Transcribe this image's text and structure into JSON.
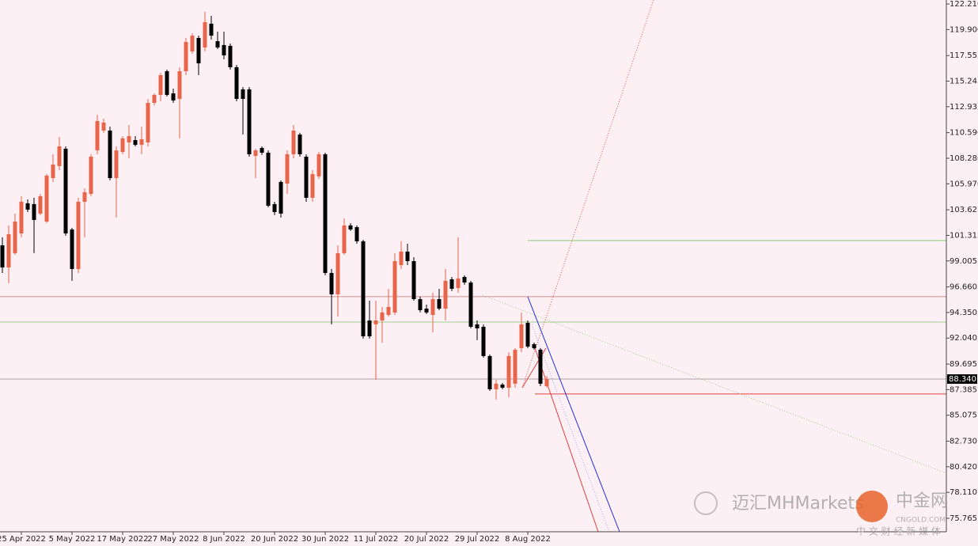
{
  "chart_data": {
    "type": "candlestick",
    "up_color": "#e8644a",
    "down_color": "#000000",
    "categories": [
      null,
      null,
      null,
      "25 Apr 2022",
      null,
      null,
      null,
      null,
      null,
      null,
      null,
      "5 May 2022",
      null,
      null,
      null,
      null,
      null,
      null,
      null,
      "17 May 2022",
      null,
      null,
      null,
      null,
      null,
      null,
      null,
      "27 May 2022",
      null,
      null,
      null,
      null,
      null,
      null,
      null,
      "8 Jun 2022",
      null,
      null,
      null,
      null,
      null,
      null,
      null,
      "20 Jun 2022",
      null,
      null,
      null,
      null,
      null,
      null,
      null,
      "30 Jun 2022",
      null,
      null,
      null,
      null,
      null,
      null,
      null,
      "11 Jul 2022",
      null,
      null,
      null,
      null,
      null,
      null,
      null,
      "20 Jul 2022",
      null,
      null,
      null,
      null,
      null,
      null,
      null,
      "29 Jul 2022",
      null,
      null,
      null,
      null,
      null,
      null,
      null,
      "8 Aug 2022",
      null,
      null,
      null
    ],
    "open": [
      100.42,
      98.42,
      99.71,
      101.49,
      104.21,
      104.14,
      103.28,
      102.56,
      106.49,
      107.57,
      109.14,
      101.85,
      98.28,
      104.35,
      105.06,
      108.99,
      110.78,
      110.78,
      106.49,
      108.85,
      109.71,
      109.92,
      109.49,
      109.71,
      113.28,
      114.0,
      116.14,
      114.14,
      113.64,
      116.14,
      117.93,
      119.14,
      118.28,
      120.43,
      118.85,
      118.5,
      118.43,
      116.5,
      114.5,
      114.5,
      108.49,
      109.21,
      108.78,
      104.14,
      106.14,
      105.99,
      108.64,
      110.42,
      108.42,
      104.71,
      106.64,
      108.64,
      97.92,
      95.99,
      99.71,
      102.21,
      102.06,
      100.78,
      93.63,
      93.28,
      93.63,
      94.13,
      94.35,
      98.63,
      99.85,
      98.99,
      95.56,
      94.7,
      94.13,
      95.56,
      94.7,
      97.35,
      96.56,
      97.56,
      97.06,
      93.28,
      93.06,
      90.42,
      87.42,
      87.84,
      87.56,
      87.92,
      91.13,
      93.42,
      91.49,
      90.99,
      87.7
    ],
    "high": [
      101.14,
      102.21,
      103.28,
      104.85,
      104.56,
      104.71,
      105.06,
      106.85,
      108.64,
      110.21,
      109.35,
      101.99,
      104.71,
      105.56,
      108.64,
      112.21,
      111.85,
      111.14,
      109.35,
      110.28,
      111.28,
      110.28,
      111.14,
      113.64,
      114.14,
      116.0,
      116.28,
      114.57,
      116.5,
      119.14,
      119.57,
      119.35,
      121.5,
      121.14,
      119.71,
      119.71,
      118.64,
      116.71,
      114.71,
      114.71,
      109.14,
      109.35,
      108.99,
      104.35,
      106.28,
      108.99,
      111.28,
      110.57,
      108.64,
      107.21,
      108.85,
      108.78,
      98.28,
      100.42,
      102.85,
      102.42,
      102.21,
      100.92,
      95.42,
      95.42,
      94.85,
      96.49,
      99.71,
      100.78,
      100.56,
      99.35,
      95.78,
      95.06,
      96.14,
      96.49,
      98.28,
      97.56,
      101.14,
      97.71,
      97.21,
      93.63,
      93.28,
      90.56,
      88.27,
      87.99,
      90.77,
      91.13,
      94.35,
      93.63,
      91.63,
      91.13,
      88.63
    ],
    "low": [
      97.92,
      96.99,
      99.56,
      101.14,
      103.42,
      99.71,
      103.14,
      102.42,
      106.14,
      107.21,
      101.28,
      97.21,
      97.92,
      101.14,
      104.85,
      108.64,
      110.57,
      106.28,
      102.92,
      108.64,
      108.28,
      109.35,
      108.64,
      109.35,
      113.07,
      113.42,
      113.85,
      113.28,
      110.07,
      115.78,
      117.71,
      115.78,
      117.93,
      119.0,
      118.14,
      117.21,
      116.28,
      113.42,
      110.42,
      108.42,
      106.49,
      108.57,
      103.85,
      103.14,
      102.92,
      105.06,
      108.28,
      108.42,
      104.35,
      104.35,
      106.42,
      97.71,
      93.28,
      93.99,
      99.56,
      101.71,
      100.56,
      91.99,
      91.99,
      88.27,
      91.63,
      93.99,
      94.13,
      98.28,
      98.63,
      95.42,
      94.35,
      94.2,
      92.56,
      94.56,
      93.63,
      96.28,
      96.14,
      96.85,
      92.92,
      91.85,
      90.27,
      87.27,
      86.49,
      87.42,
      86.7,
      87.56,
      90.77,
      91.13,
      90.99,
      87.7,
      87.56
    ],
    "close": [
      98.42,
      101.42,
      102.56,
      104.35,
      103.64,
      102.71,
      104.85,
      106.71,
      107.71,
      109.35,
      101.49,
      98.28,
      104.35,
      105.21,
      108.42,
      111.64,
      111.5,
      106.49,
      108.99,
      110.07,
      110.28,
      109.49,
      110.0,
      113.28,
      114.0,
      115.78,
      114.0,
      113.5,
      116.14,
      118.78,
      119.35,
      116.85,
      120.57,
      119.35,
      118.28,
      117.57,
      116.5,
      113.64,
      113.64,
      108.64,
      108.99,
      108.78,
      103.99,
      103.42,
      103.28,
      108.64,
      110.78,
      108.64,
      104.71,
      106.85,
      108.64,
      97.92,
      95.99,
      99.71,
      102.21,
      101.85,
      100.78,
      92.2,
      92.2,
      93.63,
      94.35,
      94.85,
      98.99,
      99.85,
      98.99,
      95.56,
      94.56,
      94.35,
      95.56,
      94.7,
      97.21,
      96.49,
      97.42,
      97.06,
      93.06,
      92.92,
      90.42,
      87.42,
      87.92,
      87.56,
      90.42,
      90.99,
      93.28,
      91.27,
      91.13,
      87.92,
      88.34
    ],
    "ylim": [
      74.55,
      122.57
    ],
    "yticks": [
      {
        "value": 122.21,
        "label": "122.210"
      },
      {
        "value": 119.9,
        "label": "119.900"
      },
      {
        "value": 117.555,
        "label": "117.555"
      },
      {
        "value": 115.245,
        "label": "115.245"
      },
      {
        "value": 112.935,
        "label": "112.935"
      },
      {
        "value": 110.59,
        "label": "110.590"
      },
      {
        "value": 108.28,
        "label": "108.280"
      },
      {
        "value": 105.97,
        "label": "105.970"
      },
      {
        "value": 103.625,
        "label": "103.625"
      },
      {
        "value": 101.315,
        "label": "101.315"
      },
      {
        "value": 99.005,
        "label": "99.005"
      },
      {
        "value": 96.66,
        "label": "96.660"
      },
      {
        "value": 94.35,
        "label": "94.350"
      },
      {
        "value": 92.04,
        "label": "92.040"
      },
      {
        "value": 89.695,
        "label": "89.695"
      },
      {
        "value": 87.385,
        "label": "87.385"
      },
      {
        "value": 85.075,
        "label": "85.075"
      },
      {
        "value": 82.73,
        "label": "82.730"
      },
      {
        "value": 80.42,
        "label": "80.420"
      },
      {
        "value": 78.11,
        "label": "78.110"
      },
      {
        "value": 75.765,
        "label": "75.765"
      }
    ],
    "last_price": {
      "value": 88.34,
      "label": "88.340"
    },
    "hlines": [
      {
        "value": 95.78,
        "color": "#c98f8f"
      },
      {
        "value": 93.49,
        "color": "#9fd08f"
      },
      {
        "value": 88.34,
        "color": "#b0a0a6"
      },
      {
        "value": 100.85,
        "color": "#7fd06f"
      },
      {
        "value": 86.99,
        "color": "#e04040"
      }
    ],
    "watermark": {
      "left": "迈汇MHMarkets",
      "brand": "中金网",
      "site": "CNGOLD.COM",
      "tagline": "中 文 财 经 新 媒 体"
    }
  }
}
